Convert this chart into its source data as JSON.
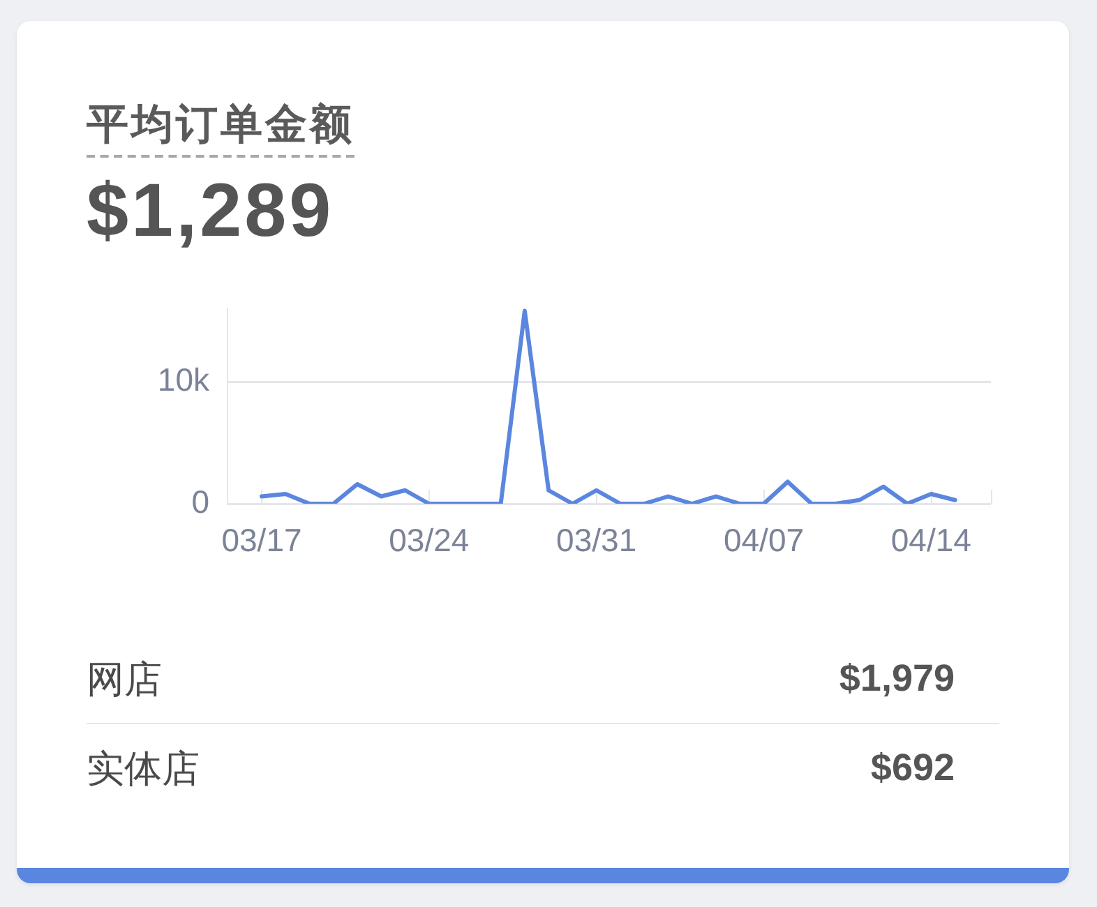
{
  "chart_data": {
    "type": "line",
    "title": "平均订单金额",
    "subtitle": "$1,289",
    "categories": [
      "03/17",
      null,
      null,
      null,
      null,
      null,
      null,
      "03/24",
      null,
      null,
      null,
      null,
      null,
      null,
      "03/31",
      null,
      null,
      null,
      null,
      null,
      null,
      "04/07",
      null,
      null,
      null,
      null,
      null,
      null,
      "04/14",
      null
    ],
    "values": [
      600,
      800,
      0,
      0,
      1600,
      600,
      1100,
      0,
      0,
      0,
      0,
      15800,
      1100,
      0,
      1100,
      0,
      0,
      600,
      0,
      600,
      0,
      0,
      1800,
      0,
      0,
      300,
      1400,
      0,
      800,
      300
    ],
    "color": "#5a86df",
    "ylim": [
      0,
      16000
    ],
    "yticks": [
      0,
      {
        "value": 10000,
        "label": "10k"
      }
    ],
    "grid": "y",
    "annotations": [
      "网店",
      "$1,979",
      "实体店",
      "$692"
    ]
  }
}
